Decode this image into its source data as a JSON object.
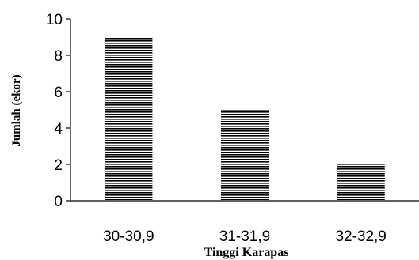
{
  "chart_data": {
    "type": "bar",
    "categories": [
      "30-30,9",
      "31-31,9",
      "32-32,9"
    ],
    "values": [
      9,
      5,
      2
    ],
    "title": "",
    "xlabel": "Tinggi Karapas",
    "ylabel": "Jumlah (ekor)",
    "ylim": [
      0,
      10
    ],
    "yticks": [
      0,
      2,
      4,
      6,
      8,
      10
    ],
    "grid": false,
    "legend": "none",
    "bar_fill": "horizontal-stripes",
    "bar_color": "#000000"
  }
}
